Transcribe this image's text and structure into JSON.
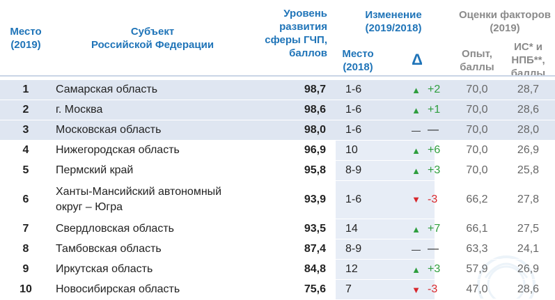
{
  "headers": {
    "place": "Место (2019)",
    "subject_line1": "Субъект",
    "subject_line2": "Российской Федерации",
    "level": "Уровень развития сферы ГЧП, баллов",
    "change": "Изменение (2019/2018)",
    "change_place": "Место (2018)",
    "change_delta": "Δ",
    "factors": "Оценки факторов (2019)",
    "opyt": "Опыт, баллы",
    "is_npb": "ИС* и НПБ**, баллы"
  },
  "rows": [
    {
      "rank": "1",
      "name": "Самарская область",
      "score": "98,7",
      "prev": "1-6",
      "arrow": "▲",
      "dir": "up",
      "change": "+2",
      "opyt": "70,0",
      "is_npb": "28,7"
    },
    {
      "rank": "2",
      "name": "г. Москва",
      "score": "98,6",
      "prev": "1-6",
      "arrow": "▲",
      "dir": "up",
      "change": "+1",
      "opyt": "70,0",
      "is_npb": "28,6"
    },
    {
      "rank": "3",
      "name": "Московская область",
      "score": "98,0",
      "prev": "1-6",
      "arrow": "—",
      "dir": "same",
      "change": "—",
      "opyt": "70,0",
      "is_npb": "28,0"
    },
    {
      "rank": "4",
      "name": "Нижегородская область",
      "score": "96,9",
      "prev": "10",
      "arrow": "▲",
      "dir": "up",
      "change": "+6",
      "opyt": "70,0",
      "is_npb": "26,9"
    },
    {
      "rank": "5",
      "name": "Пермский край",
      "score": "95,8",
      "prev": "8-9",
      "arrow": "▲",
      "dir": "up",
      "change": "+3",
      "opyt": "70,0",
      "is_npb": "25,8"
    },
    {
      "rank": "6",
      "name": "Ханты-Мансийский автономный округ – Югра",
      "score": "93,9",
      "prev": "1-6",
      "arrow": "▼",
      "dir": "down",
      "change": "-3",
      "opyt": "66,2",
      "is_npb": "27,8"
    },
    {
      "rank": "7",
      "name": "Свердловская область",
      "score": "93,5",
      "prev": "14",
      "arrow": "▲",
      "dir": "up",
      "change": "+7",
      "opyt": "66,1",
      "is_npb": "27,5"
    },
    {
      "rank": "8",
      "name": "Тамбовская область",
      "score": "87,4",
      "prev": "8-9",
      "arrow": "—",
      "dir": "same",
      "change": "—",
      "opyt": "63,3",
      "is_npb": "24,1"
    },
    {
      "rank": "9",
      "name": "Иркутская область",
      "score": "84,8",
      "prev": "12",
      "arrow": "▲",
      "dir": "up",
      "change": "+3",
      "opyt": "57,9",
      "is_npb": "26,9"
    },
    {
      "rank": "10",
      "name": "Новосибирская область",
      "score": "75,6",
      "prev": "7",
      "arrow": "▼",
      "dir": "down",
      "change": "-3",
      "opyt": "47,0",
      "is_npb": "28,6"
    }
  ],
  "highlight_rows": 3,
  "colors": {
    "header_blue": "#1f74b8",
    "header_gray": "#8a8a8a",
    "highlight_bg": "#dfe6f1",
    "column_bg": "#e7edf6",
    "up": "#2e9e3e",
    "down": "#d7262b"
  }
}
